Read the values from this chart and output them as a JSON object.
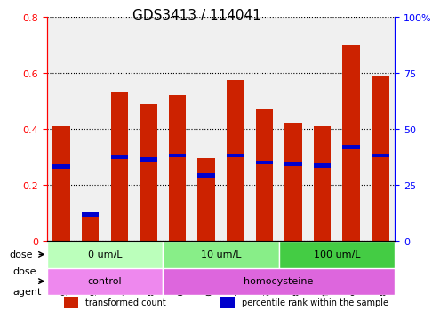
{
  "title": "GDS3413 / 114041",
  "samples": [
    "GSM240525",
    "GSM240526",
    "GSM240527",
    "GSM240528",
    "GSM240529",
    "GSM240530",
    "GSM240531",
    "GSM240532",
    "GSM240533",
    "GSM240534",
    "GSM240535",
    "GSM240848"
  ],
  "transformed_count": [
    0.41,
    0.1,
    0.53,
    0.49,
    0.52,
    0.295,
    0.575,
    0.47,
    0.42,
    0.41,
    0.7,
    0.59
  ],
  "percentile_rank": [
    0.265,
    0.095,
    0.3,
    0.29,
    0.305,
    0.235,
    0.305,
    0.28,
    0.275,
    0.27,
    0.335,
    0.305
  ],
  "ylim_left": [
    0,
    0.8
  ],
  "ylim_right": [
    0,
    100
  ],
  "yticks_left": [
    0,
    0.2,
    0.4,
    0.6,
    0.8
  ],
  "yticks_right": [
    0,
    25,
    50,
    75,
    100
  ],
  "ytick_labels_left": [
    "0",
    "0.2",
    "0.4",
    "0.6",
    "0.8"
  ],
  "ytick_labels_right": [
    "0",
    "25",
    "50",
    "75",
    "100%"
  ],
  "bar_color": "#cc2200",
  "marker_color": "#0000cc",
  "dose_groups": [
    {
      "label": "0 um/L",
      "start": 0,
      "end": 4,
      "color": "#bbffbb"
    },
    {
      "label": "10 um/L",
      "start": 4,
      "end": 8,
      "color": "#88ee88"
    },
    {
      "label": "100 um/L",
      "start": 8,
      "end": 12,
      "color": "#44cc44"
    }
  ],
  "agent_groups": [
    {
      "label": "control",
      "start": 0,
      "end": 4,
      "color": "#ee88ee"
    },
    {
      "label": "homocysteine",
      "start": 4,
      "end": 12,
      "color": "#dd66dd"
    }
  ],
  "dose_label": "dose",
  "agent_label": "agent",
  "legend_items": [
    "transformed count",
    "percentile rank within the sample"
  ],
  "legend_colors": [
    "#cc2200",
    "#0000cc"
  ],
  "grid_color": "#000000",
  "bg_color": "#ffffff",
  "plot_bg": "#f0f0f0",
  "bar_width": 0.6,
  "xlabel_rotation": -90,
  "title_fontsize": 11,
  "tick_fontsize": 8,
  "label_fontsize": 8
}
